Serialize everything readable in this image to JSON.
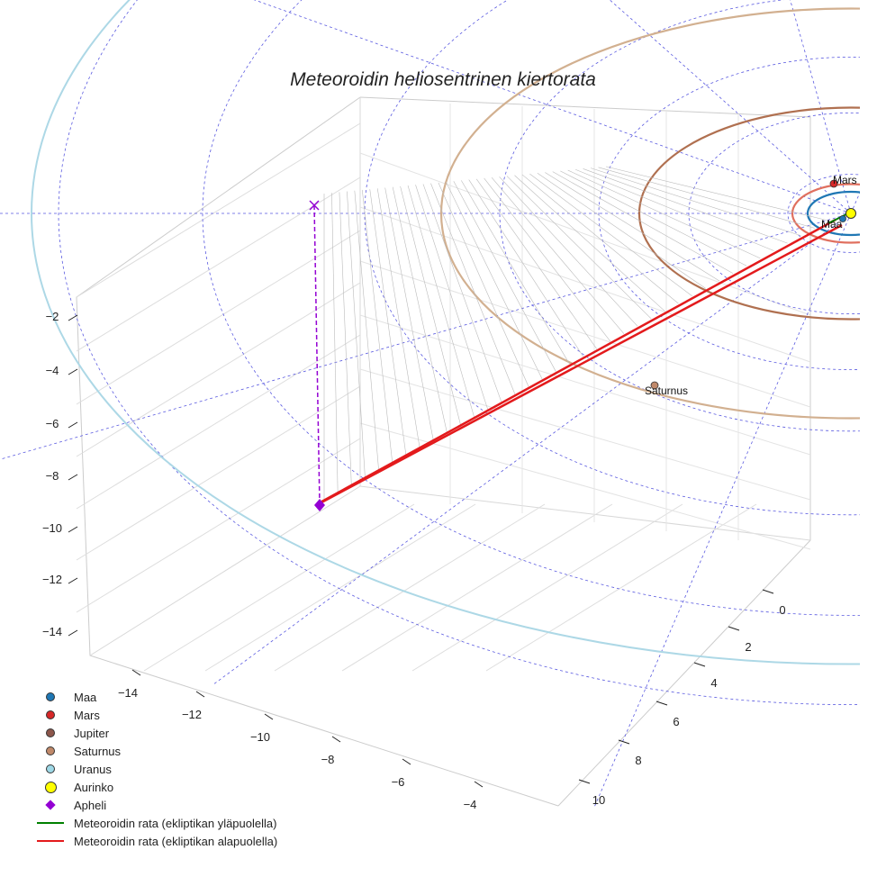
{
  "chart_data": {
    "type": "3d-orbit-plot",
    "title": "Meteoroidin heliosentrinen kiertorata",
    "units": "AU",
    "axes": {
      "x": {
        "ticks": [
          "−14",
          "−12",
          "−10",
          "−8",
          "−6",
          "−4"
        ],
        "range": [
          -15,
          -3
        ]
      },
      "y": {
        "ticks": [
          "0",
          "2",
          "4",
          "6",
          "8",
          "10"
        ],
        "range": [
          -1,
          11
        ]
      },
      "z": {
        "ticks": [
          "−2",
          "−4",
          "−6",
          "−8",
          "−10",
          "−12",
          "−14"
        ],
        "range": [
          -15,
          -1
        ]
      }
    },
    "planets": [
      {
        "name": "Maa",
        "label": "Maa",
        "color": "#1f77b4",
        "orbit_color": "#1f77b4",
        "orbit_radius_au": 1.0
      },
      {
        "name": "Mars",
        "label": "Mars",
        "color": "#d62728",
        "orbit_color": "#e0705f",
        "orbit_radius_au": 1.52
      },
      {
        "name": "Jupiter",
        "label": "",
        "color": "#8c564b",
        "orbit_color": "#b07050",
        "orbit_radius_au": 5.2
      },
      {
        "name": "Saturnus",
        "label": "Saturnus",
        "color": "#c0896a",
        "orbit_color": "#d2b090",
        "orbit_radius_au": 9.5
      },
      {
        "name": "Uranus",
        "label": "",
        "color": "#9ed8e6",
        "orbit_color": "#add8e6",
        "orbit_radius_au": 19.2
      }
    ],
    "sun": {
      "name": "Aurinko",
      "color": "#ffff00"
    },
    "aphelion": {
      "name": "Apheli",
      "color": "#9400d3",
      "position_au": [
        -10.5,
        0,
        -9.6
      ]
    },
    "trajectory_above": {
      "name": "Meteoroidin rata (ekliptikan yläpuolella)",
      "color": "#008000"
    },
    "trajectory_below": {
      "name": "Meteoroidin rata (ekliptikan alapuolella)",
      "color": "#e31a1c"
    }
  },
  "legend": [
    {
      "label": "Maa",
      "kind": "dot",
      "color": "#1f77b4"
    },
    {
      "label": "Mars",
      "kind": "dot",
      "color": "#d62728"
    },
    {
      "label": "Jupiter",
      "kind": "dot",
      "color": "#8c564b"
    },
    {
      "label": "Saturnus",
      "kind": "dot",
      "color": "#c0896a"
    },
    {
      "label": "Uranus",
      "kind": "dot",
      "color": "#9ed8e6"
    },
    {
      "label": "Aurinko",
      "kind": "sun",
      "color": "#ffff00"
    },
    {
      "label": "Apheli",
      "kind": "diamond",
      "color": "#9400d3"
    },
    {
      "label": "Meteoroidin rata (ekliptikan yläpuolella)",
      "kind": "line",
      "color": "#008000"
    },
    {
      "label": "Meteoroidin rata (ekliptikan alapuolella)",
      "kind": "line",
      "color": "#e31a1c"
    }
  ]
}
